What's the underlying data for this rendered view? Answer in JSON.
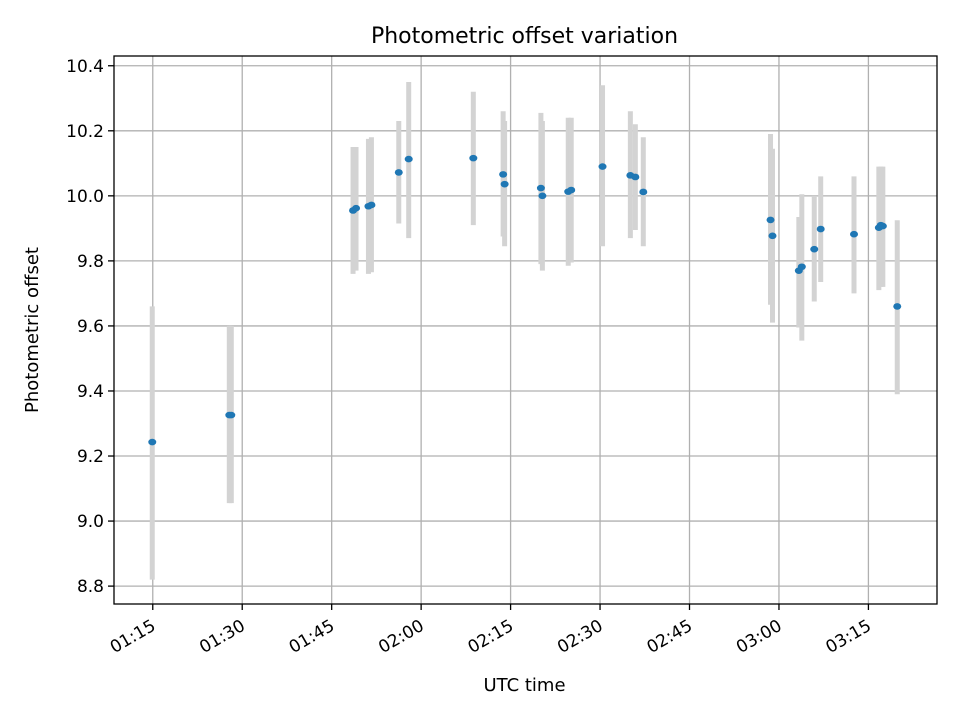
{
  "chart_data": {
    "type": "scatter",
    "title": "Photometric offset variation",
    "xlabel": "UTC time",
    "ylabel": "Photometric offset",
    "x_axis": {
      "kind": "time",
      "range": [
        "01:08:30",
        "03:26:30"
      ],
      "ticks": [
        "01:15",
        "01:30",
        "01:45",
        "02:00",
        "02:15",
        "02:30",
        "02:45",
        "03:00",
        "03:15"
      ]
    },
    "y_axis": {
      "range": [
        8.745,
        10.43
      ],
      "ticks": [
        8.8,
        9.0,
        9.2,
        9.4,
        9.6,
        9.8,
        10.0,
        10.2,
        10.4
      ],
      "tick_labels": [
        "8.8",
        "9.0",
        "9.2",
        "9.4",
        "9.6",
        "9.8",
        "10.0",
        "10.2",
        "10.4"
      ]
    },
    "grid": true,
    "error_bar_color": "#d3d3d3",
    "marker_color": "#1f77b4",
    "points": [
      {
        "x": "01:14:55",
        "y": 9.243,
        "low": 8.82,
        "high": 9.66
      },
      {
        "x": "01:27:50",
        "y": 9.326,
        "low": 9.055,
        "high": 9.6
      },
      {
        "x": "01:28:10",
        "y": 9.326,
        "low": 9.055,
        "high": 9.6
      },
      {
        "x": "01:48:35",
        "y": 9.955,
        "low": 9.76,
        "high": 10.15
      },
      {
        "x": "01:49:05",
        "y": 9.962,
        "low": 9.77,
        "high": 10.15
      },
      {
        "x": "01:51:10",
        "y": 9.968,
        "low": 9.76,
        "high": 10.175
      },
      {
        "x": "01:51:40",
        "y": 9.972,
        "low": 9.765,
        "high": 10.18
      },
      {
        "x": "01:56:15",
        "y": 10.072,
        "low": 9.915,
        "high": 10.23
      },
      {
        "x": "01:57:55",
        "y": 10.113,
        "low": 9.87,
        "high": 10.35
      },
      {
        "x": "02:08:45",
        "y": 10.116,
        "low": 9.91,
        "high": 10.32
      },
      {
        "x": "02:13:45",
        "y": 10.066,
        "low": 9.875,
        "high": 10.26
      },
      {
        "x": "02:14:00",
        "y": 10.036,
        "low": 9.845,
        "high": 10.23
      },
      {
        "x": "02:20:05",
        "y": 10.024,
        "low": 9.79,
        "high": 10.255
      },
      {
        "x": "02:20:20",
        "y": 10.0,
        "low": 9.77,
        "high": 10.23
      },
      {
        "x": "02:24:40",
        "y": 10.013,
        "low": 9.785,
        "high": 10.24
      },
      {
        "x": "02:25:10",
        "y": 10.018,
        "low": 9.795,
        "high": 10.24
      },
      {
        "x": "02:30:25",
        "y": 10.09,
        "low": 9.845,
        "high": 10.34
      },
      {
        "x": "02:35:05",
        "y": 10.063,
        "low": 9.87,
        "high": 10.26
      },
      {
        "x": "02:35:55",
        "y": 10.058,
        "low": 9.895,
        "high": 10.22
      },
      {
        "x": "02:37:15",
        "y": 10.012,
        "low": 9.845,
        "high": 10.18
      },
      {
        "x": "02:58:35",
        "y": 9.926,
        "low": 9.665,
        "high": 10.19
      },
      {
        "x": "02:58:55",
        "y": 9.877,
        "low": 9.61,
        "high": 10.145
      },
      {
        "x": "03:03:20",
        "y": 9.77,
        "low": 9.595,
        "high": 9.935
      },
      {
        "x": "03:03:50",
        "y": 9.782,
        "low": 9.555,
        "high": 10.005
      },
      {
        "x": "03:05:55",
        "y": 9.836,
        "low": 9.675,
        "high": 10.0
      },
      {
        "x": "03:07:00",
        "y": 9.898,
        "low": 9.735,
        "high": 10.06
      },
      {
        "x": "03:12:35",
        "y": 9.882,
        "low": 9.7,
        "high": 10.06
      },
      {
        "x": "03:16:45",
        "y": 9.902,
        "low": 9.71,
        "high": 10.09
      },
      {
        "x": "03:17:05",
        "y": 9.91,
        "low": 9.72,
        "high": 10.09
      },
      {
        "x": "03:17:25",
        "y": 9.907,
        "low": 9.72,
        "high": 10.09
      },
      {
        "x": "03:19:50",
        "y": 9.66,
        "low": 9.39,
        "high": 9.925
      }
    ]
  }
}
